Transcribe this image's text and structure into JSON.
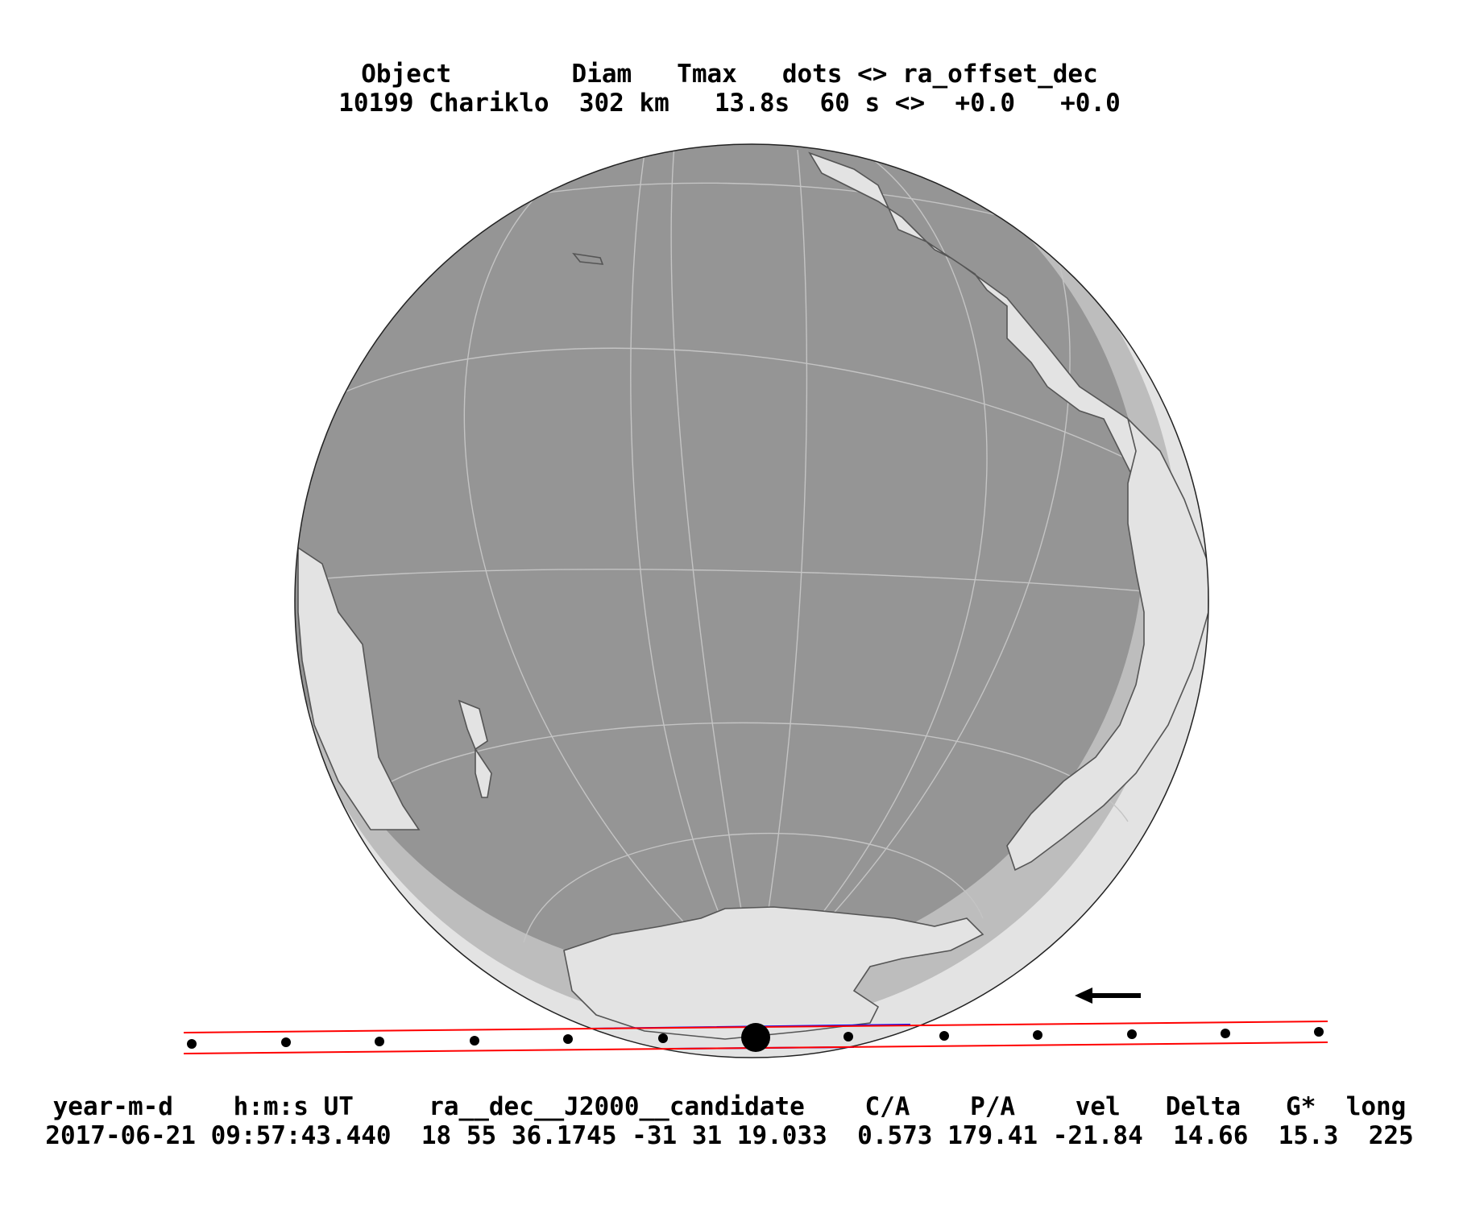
{
  "header": {
    "line1": "Object        Diam   Tmax   dots <> ra_offset_dec",
    "line2": "10199 Chariklo  302 km   13.8s  60 s <>  +0.0   +0.0"
  },
  "footer": {
    "line1": "year-m-d    h:m:s UT     ra__dec__J2000__candidate    C/A    P/A    vel   Delta   G*  long",
    "line2": "2017-06-21 09:57:43.440  18 55 36.1745 -31 31 19.033  0.573 179.41 -21.84  14.66  15.3  225"
  },
  "map": {
    "colors": {
      "night": "#959595",
      "twilight": "#bdbdbd",
      "day": "#e3e3e3",
      "coast": "#555555",
      "graticule": "#c4c4c4",
      "limb": "#222222",
      "path_limits": "#ff0000",
      "body_path": "#0000ff",
      "dots": "#000000"
    },
    "motion_arrow": "left-arrow"
  }
}
